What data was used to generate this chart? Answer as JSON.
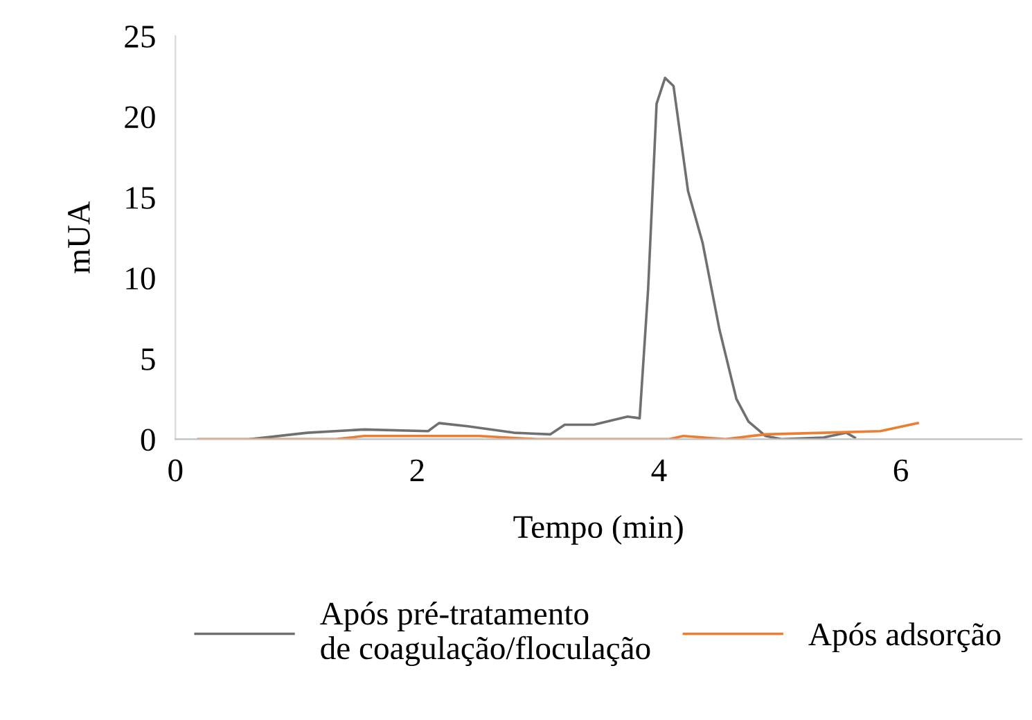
{
  "chart_data": {
    "type": "line",
    "xlabel": "Tempo (min)",
    "ylabel": "mUA",
    "xlim": [
      0,
      7
    ],
    "xticks": [
      0,
      2,
      4,
      6
    ],
    "ylim": [
      0,
      25
    ],
    "yticks": [
      0,
      5,
      10,
      15,
      20,
      25
    ],
    "grid": false,
    "legend": "bottom",
    "marker": "none",
    "line_style": "solid",
    "series": [
      {
        "name": "Após pré-tratamento\nde coagulação/floculação",
        "color": "#707070",
        "x": [
          0.62,
          1.09,
          1.56,
          2.09,
          2.18,
          2.42,
          2.8,
          3.1,
          3.22,
          3.46,
          3.74,
          3.84,
          3.91,
          3.98,
          4.05,
          4.12,
          4.24,
          4.36,
          4.5,
          4.64,
          4.74,
          4.88,
          5.02,
          5.36,
          5.55,
          5.62
        ],
        "values": [
          0,
          0.4,
          0.6,
          0.5,
          1.0,
          0.8,
          0.4,
          0.3,
          0.9,
          0.9,
          1.4,
          1.3,
          9.3,
          20.8,
          22.4,
          21.9,
          15.4,
          12.2,
          6.8,
          2.5,
          1.1,
          0.2,
          0,
          0.1,
          0.4,
          0.1
        ]
      },
      {
        "name": "Após adsorção",
        "color": "#ed7d31",
        "x": [
          0.19,
          1.33,
          1.56,
          2.51,
          2.99,
          4.08,
          4.2,
          4.55,
          4.88,
          5.36,
          5.83,
          6.14
        ],
        "values": [
          0,
          0,
          0.2,
          0.2,
          0,
          0,
          0.2,
          0,
          0.3,
          0.4,
          0.5,
          1.0
        ]
      }
    ]
  }
}
